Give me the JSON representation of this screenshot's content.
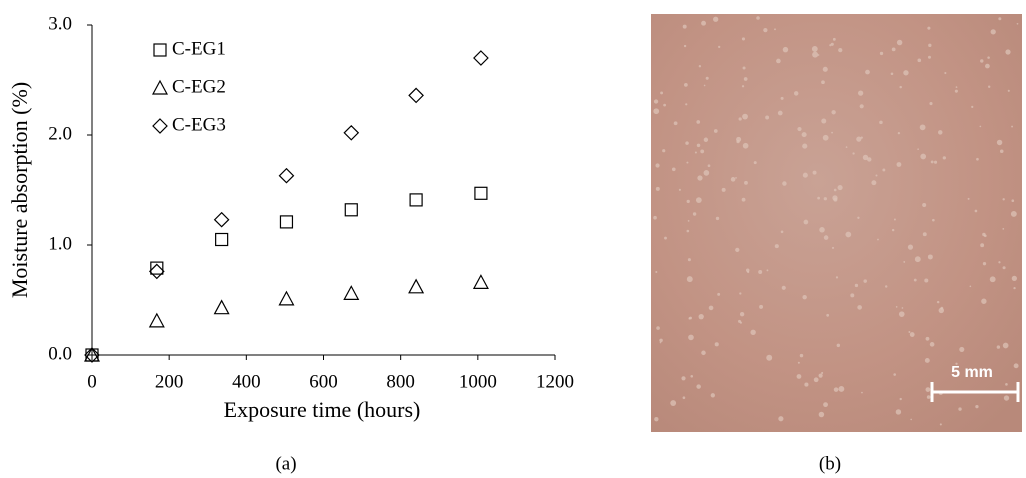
{
  "chart_data": {
    "type": "scatter",
    "xlabel": "Exposure time (hours)",
    "ylabel": "Moisture absorption (%)",
    "x": [
      0,
      168,
      336,
      504,
      672,
      840,
      1008
    ],
    "series": [
      {
        "name": "C-EG1",
        "marker": "square",
        "color": "#000000",
        "values": [
          0,
          0.79,
          1.05,
          1.21,
          1.32,
          1.41,
          1.47
        ]
      },
      {
        "name": "C-EG2",
        "marker": "triangle",
        "color": "#000000",
        "values": [
          0,
          0.31,
          0.43,
          0.51,
          0.56,
          0.62,
          0.66
        ]
      },
      {
        "name": "C-EG3",
        "marker": "diamond",
        "color": "#000000",
        "values": [
          0,
          0.76,
          1.23,
          1.63,
          2.02,
          2.36,
          2.7
        ]
      }
    ],
    "xlim": [
      0,
      1200
    ],
    "xticks": [
      0,
      200,
      400,
      600,
      800,
      1000,
      1200
    ],
    "ylim": [
      0,
      3
    ],
    "yticks": [
      {
        "value": 0,
        "label": "0.0"
      },
      {
        "value": 1,
        "label": "1.0"
      },
      {
        "value": 2,
        "label": "2.0"
      },
      {
        "value": 3,
        "label": "3.0"
      }
    ],
    "grid": false,
    "legend": "upper left"
  },
  "panels": {
    "a": "(a)",
    "b": "(b)"
  },
  "photo": {
    "scale_bar": "5 mm"
  }
}
